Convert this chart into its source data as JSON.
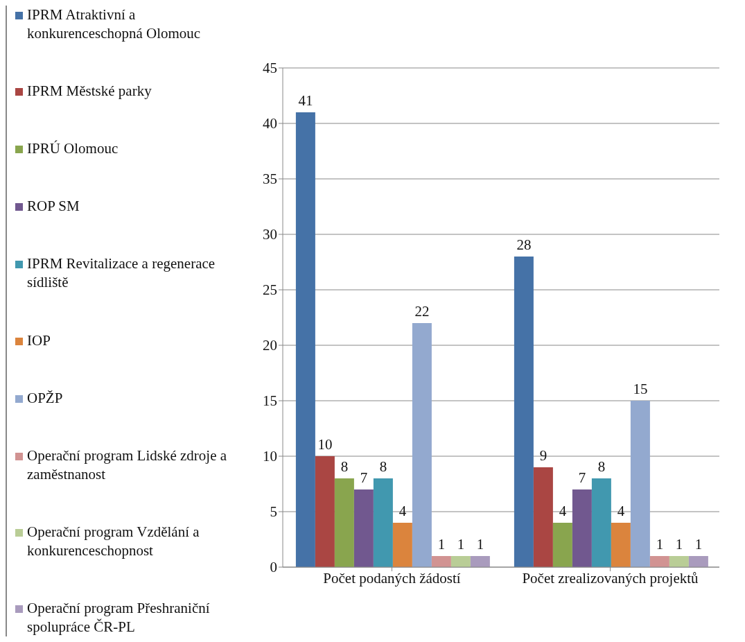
{
  "chart_data": {
    "type": "bar",
    "categories": [
      "Počet podaných žádostí",
      "Počet zrealizovaných projektů"
    ],
    "series": [
      {
        "name": "IPRM Atraktivní a konkurenceschopná Olomouc",
        "color": "#4572a7",
        "values": [
          41,
          28
        ]
      },
      {
        "name": "IPRM Městské parky",
        "color": "#aa4643",
        "values": [
          10,
          9
        ]
      },
      {
        "name": "IPRÚ Olomouc",
        "color": "#89a54e",
        "values": [
          8,
          4
        ]
      },
      {
        "name": "ROP SM",
        "color": "#71588f",
        "values": [
          7,
          7
        ]
      },
      {
        "name": "IPRM Revitalizace a regenerace sídliště",
        "color": "#4198af",
        "values": [
          8,
          8
        ]
      },
      {
        "name": "IOP",
        "color": "#db843d",
        "values": [
          4,
          4
        ]
      },
      {
        "name": "OPŽP",
        "color": "#93a9cf",
        "values": [
          22,
          15
        ]
      },
      {
        "name": "Operační program Lidské zdroje a zaměstnanost",
        "color": "#d19392",
        "values": [
          1,
          1
        ]
      },
      {
        "name": "Operační program Vzdělání a konkurenceschopnost",
        "color": "#b9cd96",
        "values": [
          1,
          1
        ]
      },
      {
        "name": "Operační program Přeshraniční spolupráce ČR-PL",
        "color": "#a99bbd",
        "values": [
          1,
          1
        ]
      }
    ],
    "ylim": [
      0,
      45
    ],
    "yticks": [
      0,
      5,
      10,
      15,
      20,
      25,
      30,
      35,
      40,
      45
    ],
    "grid": "y",
    "legend": "left",
    "data_labels": true
  }
}
